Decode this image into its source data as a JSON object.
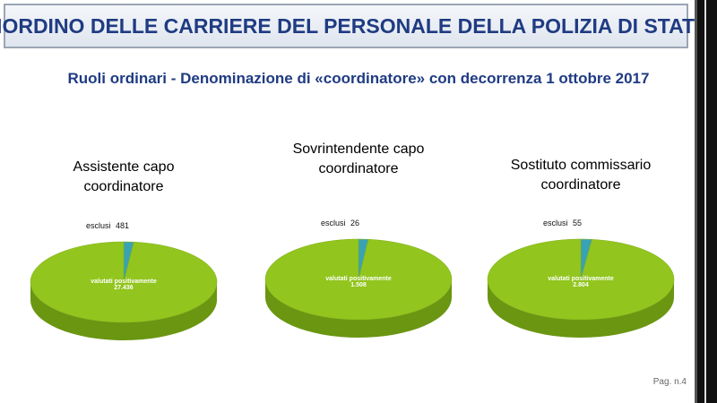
{
  "header": {
    "title": "RIORDINO DELLE CARRIERE DEL PERSONALE DELLA POLIZIA DI STATO",
    "subtitle": "Ruoli ordinari - Denominazione di «coordinatore» con decorrenza 1 ottobre 2017"
  },
  "footer": {
    "page": "Pag. n.4"
  },
  "chart_data": [
    {
      "type": "pie",
      "title": "Assistente capo coordinatore",
      "categories": [
        "esclusi",
        "valutati positivamente"
      ],
      "values": [
        481,
        27436
      ],
      "value_labels": [
        "481",
        "27.436"
      ],
      "colors": [
        "#3aa3b3",
        "#92c51e"
      ]
    },
    {
      "type": "pie",
      "title": "Sovrintendente capo coordinatore",
      "categories": [
        "esclusi",
        "valutati positivamente"
      ],
      "values": [
        26,
        1508
      ],
      "value_labels": [
        "26",
        "1.508"
      ],
      "colors": [
        "#3aa3b3",
        "#92c51e"
      ]
    },
    {
      "type": "pie",
      "title": "Sostituto commissario coordinatore",
      "categories": [
        "esclusi",
        "valutati positivamente"
      ],
      "values": [
        55,
        2804
      ],
      "value_labels": [
        "55",
        "2.804"
      ],
      "colors": [
        "#3aa3b3",
        "#92c51e"
      ]
    }
  ]
}
